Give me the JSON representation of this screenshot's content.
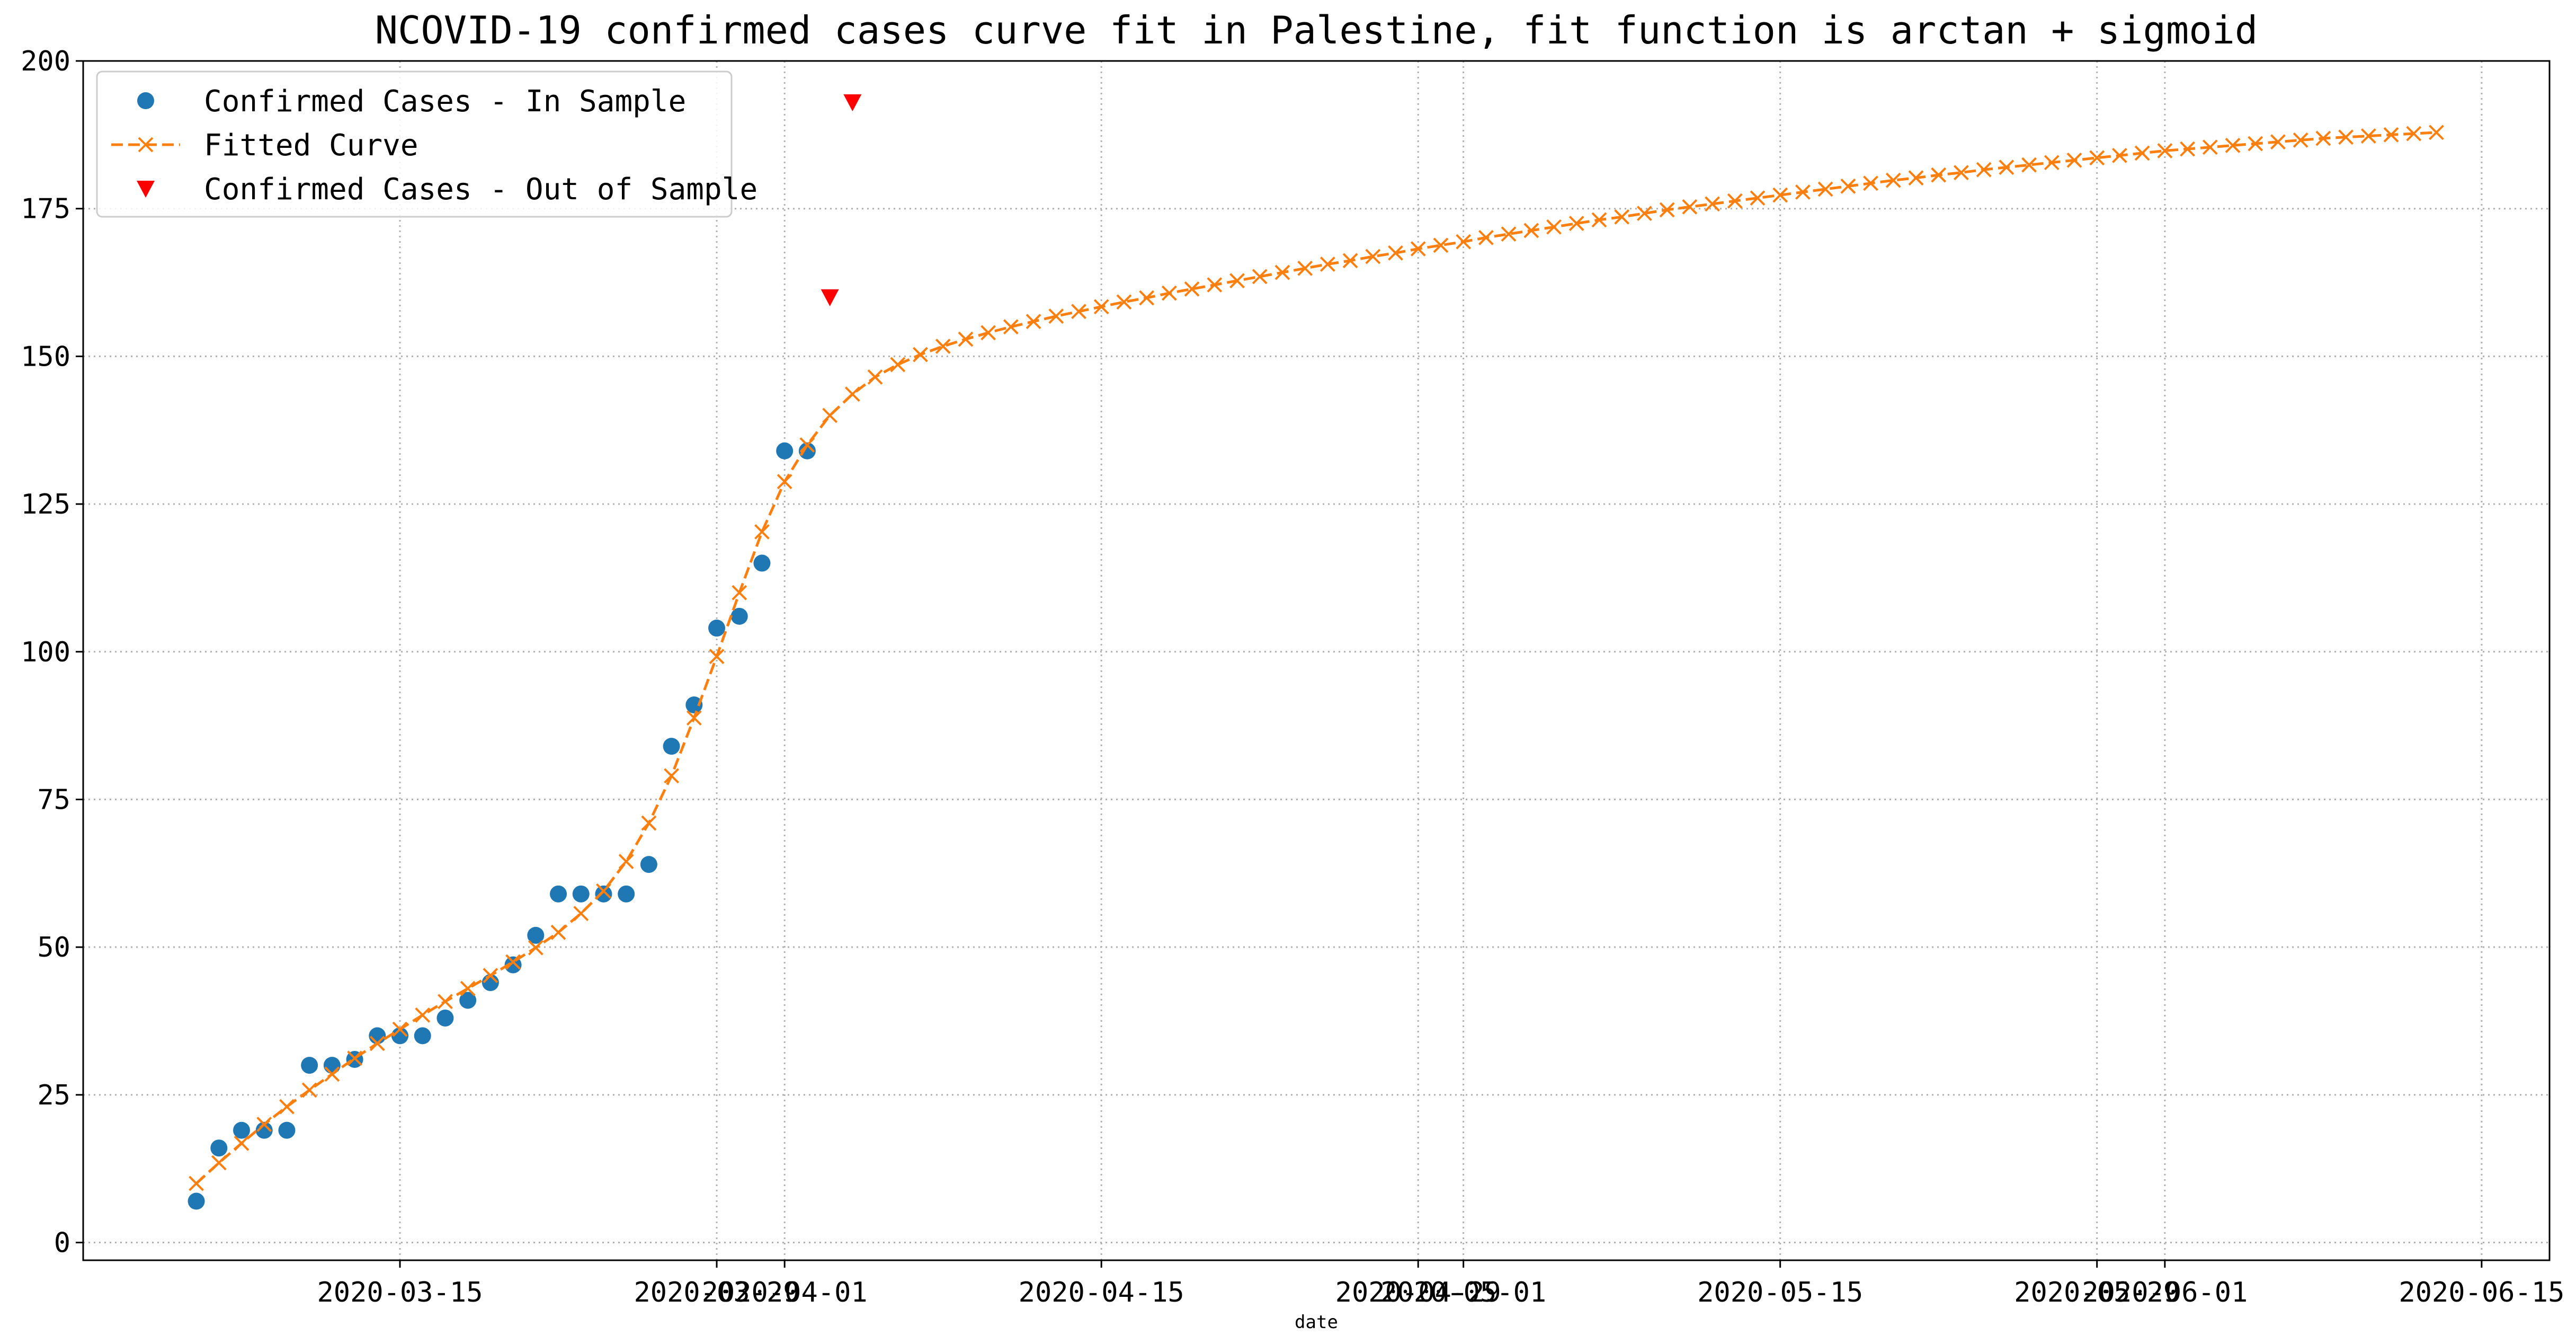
{
  "chart_data": {
    "type": "line",
    "title": "NCOVID-19 confirmed cases curve fit in Palestine, fit function is arctan + sigmoid",
    "xlabel": "date",
    "ylabel": "",
    "x_is_date": true,
    "xlim": [
      "2020-03-01",
      "2020-06-18"
    ],
    "ylim": [
      -3,
      200
    ],
    "grid": true,
    "legend_position": "top-left",
    "x_ticks": [
      {
        "date": "2020-03-15",
        "label": "2020-03-15"
      },
      {
        "date": "2020-03-29",
        "label": "2020-03-29"
      },
      {
        "date": "2020-04-01",
        "label": "2020-04-01"
      },
      {
        "date": "2020-04-15",
        "label": "2020-04-15"
      },
      {
        "date": "2020-04-29",
        "label": "2020-04-29"
      },
      {
        "date": "2020-05-01",
        "label": "2020-05-01"
      },
      {
        "date": "2020-05-15",
        "label": "2020-05-15"
      },
      {
        "date": "2020-05-29",
        "label": "2020-05-29"
      },
      {
        "date": "2020-06-01",
        "label": "2020-06-01"
      },
      {
        "date": "2020-06-15",
        "label": "2020-06-15"
      }
    ],
    "y_ticks": [
      0,
      25,
      50,
      75,
      100,
      125,
      150,
      175,
      200
    ],
    "series": [
      {
        "name": "Confirmed Cases - In Sample",
        "style": "markers",
        "marker": "circle",
        "color": "#1f77b4",
        "x": [
          "2020-03-06",
          "2020-03-07",
          "2020-03-08",
          "2020-03-09",
          "2020-03-10",
          "2020-03-11",
          "2020-03-12",
          "2020-03-13",
          "2020-03-14",
          "2020-03-15",
          "2020-03-16",
          "2020-03-17",
          "2020-03-18",
          "2020-03-19",
          "2020-03-20",
          "2020-03-21",
          "2020-03-22",
          "2020-03-23",
          "2020-03-24",
          "2020-03-25",
          "2020-03-26",
          "2020-03-27",
          "2020-03-28",
          "2020-03-29",
          "2020-03-30",
          "2020-03-31",
          "2020-04-01",
          "2020-04-02"
        ],
        "y": [
          7,
          16,
          19,
          19,
          19,
          30,
          30,
          31,
          35,
          35,
          35,
          38,
          41,
          44,
          47,
          52,
          59,
          59,
          59,
          59,
          64,
          84,
          91,
          104,
          106,
          115,
          134,
          134
        ]
      },
      {
        "name": "Fitted Curve",
        "style": "dashed-line",
        "marker": "x",
        "color": "#ff7f0e",
        "x": [
          "2020-03-06",
          "2020-03-07",
          "2020-03-08",
          "2020-03-09",
          "2020-03-10",
          "2020-03-11",
          "2020-03-12",
          "2020-03-13",
          "2020-03-14",
          "2020-03-15",
          "2020-03-16",
          "2020-03-17",
          "2020-03-18",
          "2020-03-19",
          "2020-03-20",
          "2020-03-21",
          "2020-03-22",
          "2020-03-23",
          "2020-03-24",
          "2020-03-25",
          "2020-03-26",
          "2020-03-27",
          "2020-03-28",
          "2020-03-29",
          "2020-03-30",
          "2020-03-31",
          "2020-04-01",
          "2020-04-02",
          "2020-04-03",
          "2020-04-04",
          "2020-04-05",
          "2020-04-06",
          "2020-04-07",
          "2020-04-08",
          "2020-04-09",
          "2020-04-10",
          "2020-04-11",
          "2020-04-12",
          "2020-04-13",
          "2020-04-14",
          "2020-04-15",
          "2020-04-16",
          "2020-04-17",
          "2020-04-18",
          "2020-04-19",
          "2020-04-20",
          "2020-04-21",
          "2020-04-22",
          "2020-04-23",
          "2020-04-24",
          "2020-04-25",
          "2020-04-26",
          "2020-04-27",
          "2020-04-28",
          "2020-04-29",
          "2020-04-30",
          "2020-05-01",
          "2020-05-02",
          "2020-05-03",
          "2020-05-04",
          "2020-05-05",
          "2020-05-06",
          "2020-05-07",
          "2020-05-08",
          "2020-05-09",
          "2020-05-10",
          "2020-05-11",
          "2020-05-12",
          "2020-05-13",
          "2020-05-14",
          "2020-05-15",
          "2020-05-16",
          "2020-05-17",
          "2020-05-18",
          "2020-05-19",
          "2020-05-20",
          "2020-05-21",
          "2020-05-22",
          "2020-05-23",
          "2020-05-24",
          "2020-05-25",
          "2020-05-26",
          "2020-05-27",
          "2020-05-28",
          "2020-05-29",
          "2020-05-30",
          "2020-05-31",
          "2020-06-01",
          "2020-06-02",
          "2020-06-03",
          "2020-06-04",
          "2020-06-05",
          "2020-06-06",
          "2020-06-07",
          "2020-06-08",
          "2020-06-09",
          "2020-06-10",
          "2020-06-11",
          "2020-06-12",
          "2020-06-13"
        ],
        "y": [
          10,
          13.5,
          16.8,
          20,
          23,
          25.8,
          28.5,
          31.2,
          33.7,
          36.1,
          38.5,
          40.8,
          43,
          45.2,
          47.5,
          49.9,
          52.5,
          55.7,
          59.5,
          64.5,
          71,
          79,
          88.8,
          99.2,
          110,
          120.3,
          128.8,
          135,
          140,
          143.6,
          146.5,
          148.6,
          150.3,
          151.7,
          152.9,
          154,
          155,
          155.9,
          156.8,
          157.6,
          158.4,
          159.2,
          159.9,
          160.7,
          161.4,
          162.1,
          162.8,
          163.5,
          164.2,
          164.9,
          165.6,
          166.2,
          166.9,
          167.5,
          168.2,
          168.8,
          169.4,
          170.1,
          170.7,
          171.3,
          171.9,
          172.5,
          173.1,
          173.6,
          174.2,
          174.8,
          175.3,
          175.8,
          176.3,
          176.8,
          177.3,
          177.8,
          178.3,
          178.8,
          179.3,
          179.8,
          180.2,
          180.7,
          181.1,
          181.6,
          182,
          182.4,
          182.8,
          183.2,
          183.6,
          184,
          184.4,
          184.8,
          185.1,
          185.4,
          185.7,
          186,
          186.3,
          186.6,
          186.9,
          187.1,
          187.3,
          187.5,
          187.7,
          187.9
        ]
      },
      {
        "name": "Confirmed Cases - Out of Sample",
        "style": "markers",
        "marker": "triangle-down",
        "color": "#ff0000",
        "x": [
          "2020-04-03",
          "2020-04-04"
        ],
        "y": [
          160,
          193
        ]
      }
    ]
  }
}
